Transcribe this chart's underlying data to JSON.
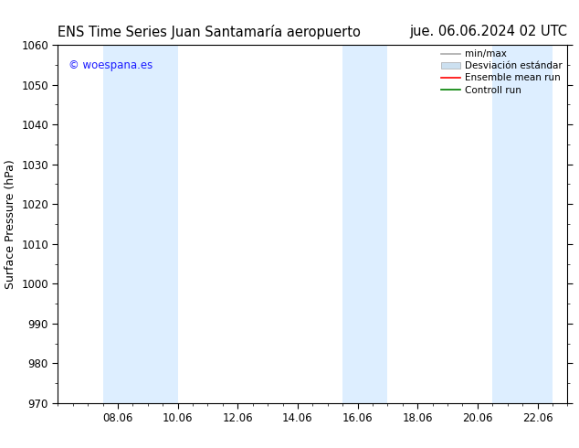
{
  "title_left": "ENS Time Series Juan Santamaría aeropuerto",
  "title_right": "jue. 06.06.2024 02 UTC",
  "ylabel": "Surface Pressure (hPa)",
  "ylim": [
    970,
    1060
  ],
  "yticks": [
    970,
    980,
    990,
    1000,
    1010,
    1020,
    1030,
    1040,
    1050,
    1060
  ],
  "xtick_labels": [
    "08.06",
    "10.06",
    "12.06",
    "14.06",
    "16.06",
    "18.06",
    "20.06",
    "22.06"
  ],
  "xtick_positions": [
    2,
    4,
    6,
    8,
    10,
    12,
    14,
    16
  ],
  "xlim": [
    0,
    17
  ],
  "watermark": "© woespana.es",
  "watermark_color": "#1a1aff",
  "background_color": "#ffffff",
  "plot_bg_color": "#ffffff",
  "shaded_bands": [
    {
      "xmin": 1.5,
      "xmax": 4.0,
      "color": "#ddeeff"
    },
    {
      "xmin": 9.5,
      "xmax": 11.0,
      "color": "#ddeeff"
    },
    {
      "xmin": 14.5,
      "xmax": 16.5,
      "color": "#ddeeff"
    }
  ],
  "legend_labels": [
    "min/max",
    "Desviación estándar",
    "Ensemble mean run",
    "Controll run"
  ],
  "legend_colors": [
    "#aaaaaa",
    "#cce0f0",
    "#ff0000",
    "#008000"
  ],
  "grid_color": "#dddddd",
  "title_fontsize": 10.5,
  "axis_fontsize": 9,
  "tick_fontsize": 8.5
}
